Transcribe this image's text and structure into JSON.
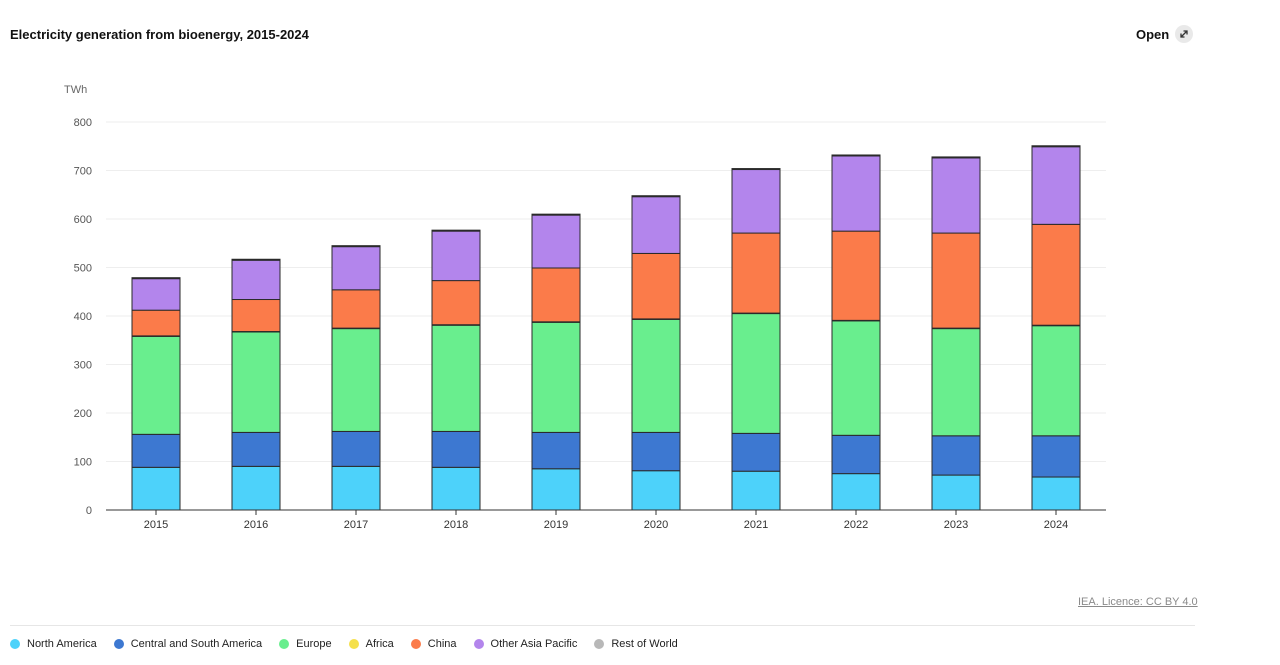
{
  "header": {
    "title": "Electricity generation from bioenergy, 2015-2024",
    "open_label": "Open"
  },
  "footer": {
    "licence": "IEA. Licence: CC BY 4.0"
  },
  "colors": {
    "North America": "#4dd2fa",
    "Central and South America": "#3d78d1",
    "Europe": "#69ee8e",
    "Africa": "#f5e04a",
    "China": "#fb7b4a",
    "Other Asia Pacific": "#b385ec",
    "Rest of World": "#b8b8b8",
    "grid": "#eeeeee",
    "axis": "#333333"
  },
  "chart_data": {
    "type": "bar",
    "stacked": true,
    "title": "Electricity generation from bioenergy, 2015-2024",
    "ylabel": "TWh",
    "ylim": [
      0,
      800
    ],
    "yticks": [
      0,
      100,
      200,
      300,
      400,
      500,
      600,
      700,
      800
    ],
    "grid": true,
    "legend_position": "bottom",
    "categories": [
      "2015",
      "2016",
      "2017",
      "2018",
      "2019",
      "2020",
      "2021",
      "2022",
      "2023",
      "2024"
    ],
    "series": [
      {
        "name": "North America",
        "values": [
          88,
          90,
          90,
          88,
          85,
          81,
          80,
          75,
          72,
          68
        ]
      },
      {
        "name": "Central and South America",
        "values": [
          68,
          70,
          72,
          74,
          75,
          79,
          78,
          79,
          81,
          85
        ]
      },
      {
        "name": "Europe",
        "values": [
          202,
          207,
          212,
          219,
          227,
          233,
          247,
          236,
          221,
          227
        ]
      },
      {
        "name": "Africa",
        "values": [
          1,
          1,
          1,
          1,
          1,
          1,
          1,
          1,
          1,
          1
        ]
      },
      {
        "name": "China",
        "values": [
          53,
          66,
          79,
          91,
          111,
          135,
          165,
          184,
          196,
          208
        ]
      },
      {
        "name": "Other Asia Pacific",
        "values": [
          65,
          81,
          89,
          102,
          109,
          117,
          131,
          155,
          155,
          160
        ]
      },
      {
        "name": "Rest of World",
        "values": [
          2,
          2,
          2,
          2,
          2,
          2,
          2,
          2,
          2,
          2
        ]
      }
    ]
  }
}
